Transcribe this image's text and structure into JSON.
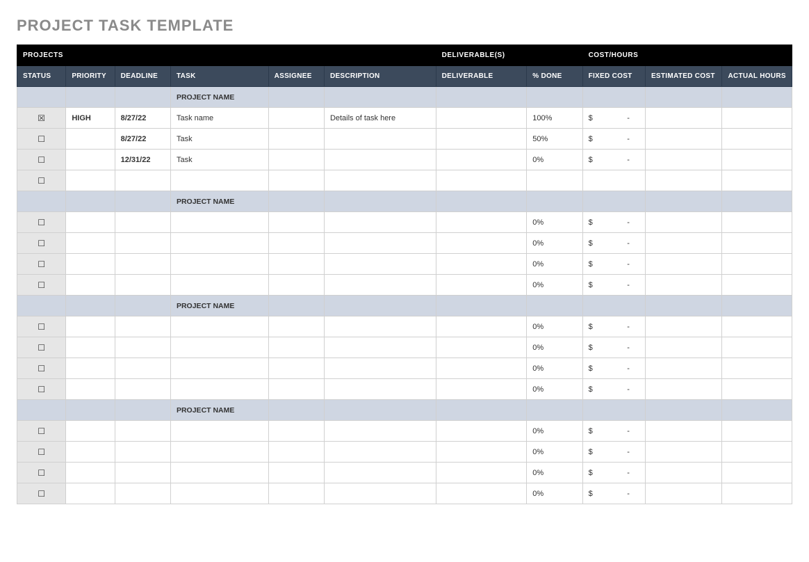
{
  "title": "PROJECT TASK TEMPLATE",
  "colors": {
    "super_header_bg": "#000000",
    "col_header_bg": "#3c4a5c",
    "section_bg": "#cfd6e2",
    "status_bg": "#e6e6e6",
    "border": "#d0d0d0",
    "title_color": "#8a8a8a"
  },
  "super_headers": {
    "projects": "PROJECTS",
    "deliverables": "DELIVERABLE(S)",
    "cost_hours": "COST/HOURS"
  },
  "columns": {
    "status": "STATUS",
    "priority": "PRIORITY",
    "deadline": "DEADLINE",
    "task": "TASK",
    "assignee": "ASSIGNEE",
    "description": "DESCRIPTION",
    "deliverable": "DELIVERABLE",
    "pct_done": "% DONE",
    "fixed_cost": "FIXED COST",
    "estimated_cost": "ESTIMATED COST",
    "actual_hours": "ACTUAL HOURS"
  },
  "checkbox": {
    "checked": "☒",
    "unchecked": "☐"
  },
  "currency": "$",
  "dash": "-",
  "sections": [
    {
      "name": "PROJECT NAME",
      "rows": [
        {
          "checked": true,
          "priority": "HIGH",
          "deadline": "8/27/22",
          "task": "Task name",
          "assignee": "",
          "description": "Details of task here",
          "deliverable": "",
          "pct_done": "100%",
          "fixed_cost": "-",
          "estimated_cost": "",
          "actual_hours": ""
        },
        {
          "checked": false,
          "priority": "",
          "deadline": "8/27/22",
          "task": "Task",
          "assignee": "",
          "description": "",
          "deliverable": "",
          "pct_done": "50%",
          "fixed_cost": "-",
          "estimated_cost": "",
          "actual_hours": ""
        },
        {
          "checked": false,
          "priority": "",
          "deadline": "12/31/22",
          "task": "Task",
          "assignee": "",
          "description": "",
          "deliverable": "",
          "pct_done": "0%",
          "fixed_cost": "-",
          "estimated_cost": "",
          "actual_hours": ""
        },
        {
          "checked": false,
          "priority": "",
          "deadline": "",
          "task": "",
          "assignee": "",
          "description": "",
          "deliverable": "",
          "pct_done": "",
          "fixed_cost": "",
          "estimated_cost": "",
          "actual_hours": ""
        }
      ]
    },
    {
      "name": "PROJECT NAME",
      "rows": [
        {
          "checked": false,
          "priority": "",
          "deadline": "",
          "task": "",
          "assignee": "",
          "description": "",
          "deliverable": "",
          "pct_done": "0%",
          "fixed_cost": "-",
          "estimated_cost": "",
          "actual_hours": ""
        },
        {
          "checked": false,
          "priority": "",
          "deadline": "",
          "task": "",
          "assignee": "",
          "description": "",
          "deliverable": "",
          "pct_done": "0%",
          "fixed_cost": "-",
          "estimated_cost": "",
          "actual_hours": ""
        },
        {
          "checked": false,
          "priority": "",
          "deadline": "",
          "task": "",
          "assignee": "",
          "description": "",
          "deliverable": "",
          "pct_done": "0%",
          "fixed_cost": "-",
          "estimated_cost": "",
          "actual_hours": ""
        },
        {
          "checked": false,
          "priority": "",
          "deadline": "",
          "task": "",
          "assignee": "",
          "description": "",
          "deliverable": "",
          "pct_done": "0%",
          "fixed_cost": "-",
          "estimated_cost": "",
          "actual_hours": ""
        }
      ]
    },
    {
      "name": "PROJECT NAME",
      "rows": [
        {
          "checked": false,
          "priority": "",
          "deadline": "",
          "task": "",
          "assignee": "",
          "description": "",
          "deliverable": "",
          "pct_done": "0%",
          "fixed_cost": "-",
          "estimated_cost": "",
          "actual_hours": ""
        },
        {
          "checked": false,
          "priority": "",
          "deadline": "",
          "task": "",
          "assignee": "",
          "description": "",
          "deliverable": "",
          "pct_done": "0%",
          "fixed_cost": "-",
          "estimated_cost": "",
          "actual_hours": ""
        },
        {
          "checked": false,
          "priority": "",
          "deadline": "",
          "task": "",
          "assignee": "",
          "description": "",
          "deliverable": "",
          "pct_done": "0%",
          "fixed_cost": "-",
          "estimated_cost": "",
          "actual_hours": ""
        },
        {
          "checked": false,
          "priority": "",
          "deadline": "",
          "task": "",
          "assignee": "",
          "description": "",
          "deliverable": "",
          "pct_done": "0%",
          "fixed_cost": "-",
          "estimated_cost": "",
          "actual_hours": ""
        }
      ]
    },
    {
      "name": "PROJECT NAME",
      "rows": [
        {
          "checked": false,
          "priority": "",
          "deadline": "",
          "task": "",
          "assignee": "",
          "description": "",
          "deliverable": "",
          "pct_done": "0%",
          "fixed_cost": "-",
          "estimated_cost": "",
          "actual_hours": ""
        },
        {
          "checked": false,
          "priority": "",
          "deadline": "",
          "task": "",
          "assignee": "",
          "description": "",
          "deliverable": "",
          "pct_done": "0%",
          "fixed_cost": "-",
          "estimated_cost": "",
          "actual_hours": ""
        },
        {
          "checked": false,
          "priority": "",
          "deadline": "",
          "task": "",
          "assignee": "",
          "description": "",
          "deliverable": "",
          "pct_done": "0%",
          "fixed_cost": "-",
          "estimated_cost": "",
          "actual_hours": ""
        },
        {
          "checked": false,
          "priority": "",
          "deadline": "",
          "task": "",
          "assignee": "",
          "description": "",
          "deliverable": "",
          "pct_done": "0%",
          "fixed_cost": "-",
          "estimated_cost": "",
          "actual_hours": ""
        }
      ]
    }
  ]
}
